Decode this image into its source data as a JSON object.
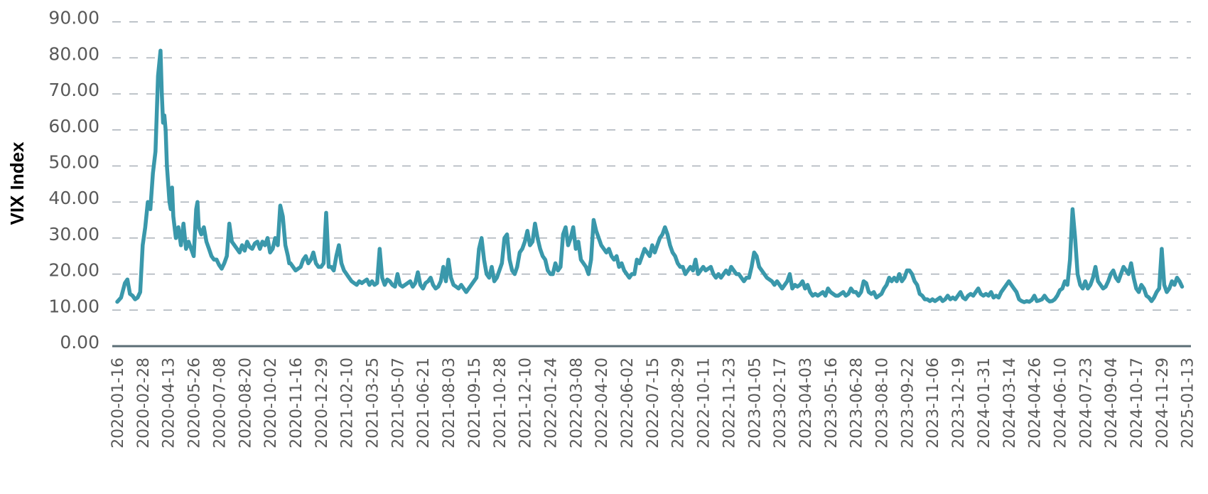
{
  "chart_data": {
    "type": "line",
    "title": "",
    "xlabel": "",
    "ylabel": "VIX Index",
    "ylim": [
      0,
      90
    ],
    "yticks": [
      "0.00",
      "10.00",
      "20.00",
      "30.00",
      "40.00",
      "50.00",
      "60.00",
      "70.00",
      "80.00",
      "90.00"
    ],
    "grid": true,
    "legend": "none",
    "line_color": "#3a98ab",
    "categories": [
      "2020-01-16",
      "2020-02-28",
      "2020-04-13",
      "2020-05-26",
      "2020-07-08",
      "2020-08-20",
      "2020-10-02",
      "2020-11-16",
      "2020-12-29",
      "2021-02-10",
      "2021-03-25",
      "2021-05-07",
      "2021-06-21",
      "2021-08-03",
      "2021-09-15",
      "2021-10-28",
      "2021-12-10",
      "2022-01-24",
      "2022-03-08",
      "2022-04-20",
      "2022-06-02",
      "2022-07-15",
      "2022-08-29",
      "2022-10-11",
      "2022-11-23",
      "2023-01-05",
      "2023-02-17",
      "2023-04-03",
      "2023-05-16",
      "2023-06-28",
      "2023-08-10",
      "2023-09-22",
      "2023-11-06",
      "2023-12-19",
      "2024-01-31",
      "2024-03-14",
      "2024-04-26",
      "2024-06-10",
      "2024-07-23",
      "2024-09-04",
      "2024-10-17",
      "2024-11-29",
      "2025-01-13"
    ],
    "series": [
      {
        "name": "VIX Index",
        "x_index": [
          0,
          0.15,
          0.3,
          0.4,
          0.5,
          0.6,
          0.7,
          0.8,
          0.9,
          1.0,
          1.1,
          1.2,
          1.3,
          1.4,
          1.5,
          1.6,
          1.7,
          1.75,
          1.8,
          1.85,
          1.9,
          1.95,
          2.0,
          2.05,
          2.1,
          2.15,
          2.2,
          2.3,
          2.4,
          2.5,
          2.6,
          2.7,
          2.8,
          2.9,
          3.0,
          3.1,
          3.15,
          3.2,
          3.3,
          3.4,
          3.5,
          3.6,
          3.7,
          3.8,
          3.9,
          4.0,
          4.1,
          4.2,
          4.3,
          4.4,
          4.5,
          4.6,
          4.7,
          4.8,
          4.9,
          5.0,
          5.1,
          5.2,
          5.3,
          5.4,
          5.5,
          5.6,
          5.7,
          5.8,
          5.9,
          6.0,
          6.1,
          6.2,
          6.3,
          6.4,
          6.5,
          6.6,
          6.7,
          6.75,
          6.8,
          6.9,
          7.0,
          7.1,
          7.2,
          7.3,
          7.4,
          7.5,
          7.6,
          7.7,
          7.8,
          7.9,
          8.0,
          8.1,
          8.2,
          8.3,
          8.4,
          8.5,
          8.6,
          8.7,
          8.8,
          8.9,
          9.0,
          9.1,
          9.2,
          9.3,
          9.4,
          9.5,
          9.6,
          9.7,
          9.8,
          9.9,
          10.0,
          10.1,
          10.2,
          10.3,
          10.4,
          10.5,
          10.6,
          10.7,
          10.8,
          10.9,
          11.0,
          11.1,
          11.2,
          11.3,
          11.4,
          11.5,
          11.6,
          11.7,
          11.8,
          11.9,
          12.0,
          12.1,
          12.2,
          12.3,
          12.4,
          12.5,
          12.6,
          12.7,
          12.8,
          12.9,
          13.0,
          13.1,
          13.2,
          13.3,
          13.4,
          13.5,
          13.6,
          13.7,
          13.8,
          13.9,
          14.0,
          14.1,
          14.2,
          14.3,
          14.4,
          14.5,
          14.6,
          14.7,
          14.8,
          14.9,
          15.0,
          15.1,
          15.2,
          15.3,
          15.4,
          15.5,
          15.6,
          15.7,
          15.8,
          15.9,
          16.0,
          16.1,
          16.2,
          16.3,
          16.4,
          16.5,
          16.6,
          16.7,
          16.8,
          16.9,
          17.0,
          17.1,
          17.2,
          17.3,
          17.4,
          17.5,
          17.6,
          17.7,
          17.8,
          17.9,
          18.0,
          18.1,
          18.2,
          18.3,
          18.4,
          18.5,
          18.6,
          18.7,
          18.8,
          18.9,
          19.0,
          19.1,
          19.2,
          19.3,
          19.4,
          19.5,
          19.6,
          19.7,
          19.8,
          19.9,
          20.0,
          20.1,
          20.2,
          20.3,
          20.4,
          20.5,
          20.6,
          20.7,
          20.8,
          20.9,
          21.0,
          21.1,
          21.2,
          21.3,
          21.4,
          21.5,
          21.6,
          21.7,
          21.8,
          21.9,
          22.0,
          22.1,
          22.2,
          22.3,
          22.4,
          22.5,
          22.6,
          22.7,
          22.8,
          22.9,
          23.0,
          23.1,
          23.2,
          23.3,
          23.4,
          23.5,
          23.6,
          23.7,
          23.8,
          23.9,
          24.0,
          24.1,
          24.2,
          24.3,
          24.4,
          24.5,
          24.6,
          24.7,
          24.8,
          24.9,
          25.0,
          25.1,
          25.2,
          25.3,
          25.4,
          25.5,
          25.6,
          25.7,
          25.8,
          25.9,
          26.0,
          26.1,
          26.2,
          26.3,
          26.4,
          26.5,
          26.6,
          26.7,
          26.8,
          26.9,
          27.0,
          27.1,
          27.2,
          27.3,
          27.4,
          27.5,
          27.6,
          27.7,
          27.8,
          27.9,
          28.0,
          28.1,
          28.2,
          28.3,
          28.4,
          28.5,
          28.6,
          28.7,
          28.8,
          28.9,
          29.0,
          29.1,
          29.2,
          29.3,
          29.4,
          29.5,
          29.6,
          29.7,
          29.8,
          29.9,
          30.0,
          30.1,
          30.2,
          30.3,
          30.4,
          30.5,
          30.6,
          30.7,
          30.8,
          30.9,
          31.0,
          31.1,
          31.2,
          31.3,
          31.4,
          31.5,
          31.6,
          31.7,
          31.8,
          31.9,
          32.0,
          32.1,
          32.2,
          32.3,
          32.4,
          32.5,
          32.6,
          32.7,
          32.8,
          32.9,
          33.0,
          33.1,
          33.2,
          33.3,
          33.4,
          33.5,
          33.6,
          33.7,
          33.8,
          33.9,
          34.0,
          34.1,
          34.2,
          34.3,
          34.4,
          34.5,
          34.6,
          34.7,
          34.8,
          34.9,
          35.0,
          35.1,
          35.2,
          35.3,
          35.4,
          35.5,
          35.6,
          35.7,
          35.8,
          35.9,
          36.0,
          36.1,
          36.2,
          36.3,
          36.4,
          36.5,
          36.6,
          36.7,
          36.8,
          36.9,
          37.0,
          37.1,
          37.2,
          37.3,
          37.4,
          37.5,
          37.6,
          37.7,
          37.8,
          37.9,
          38.0,
          38.1,
          38.2,
          38.3,
          38.4,
          38.5,
          38.6,
          38.7,
          38.8,
          38.9,
          39.0,
          39.1,
          39.2,
          39.3,
          39.4,
          39.5,
          39.6,
          39.7,
          39.8,
          39.9,
          40.0,
          40.1,
          40.2,
          40.3,
          40.4,
          40.5,
          40.6,
          40.7,
          40.8,
          40.9,
          41.0,
          41.1,
          41.2,
          41.3,
          41.4,
          41.5,
          41.6,
          41.7,
          41.8,
          41.9,
          42.0,
          42.1,
          42.2,
          42.3
        ],
        "values": [
          12.3,
          13.5,
          17.5,
          18.5,
          14.5,
          14,
          13,
          13.5,
          15,
          28,
          33,
          40,
          38,
          48,
          54,
          75,
          82,
          70,
          62,
          64,
          60,
          50,
          45,
          40,
          38,
          44,
          36,
          30,
          33,
          28,
          34,
          27,
          29,
          27,
          25,
          38,
          40,
          33,
          31,
          33,
          29,
          27,
          25,
          24,
          24,
          22.5,
          21.5,
          23,
          25,
          34,
          29,
          28,
          27,
          26,
          28,
          26.5,
          29,
          27.5,
          27,
          28.5,
          29,
          27,
          29,
          28,
          30,
          26,
          27,
          30,
          28,
          39,
          36,
          28,
          25,
          23,
          23,
          22,
          21,
          21.5,
          22,
          24,
          25,
          23,
          24,
          26,
          23,
          22,
          22,
          23,
          37,
          22,
          22,
          21,
          25,
          28,
          23,
          21,
          20,
          19,
          18,
          17.5,
          17,
          18,
          17.5,
          18,
          18.5,
          17,
          18,
          17,
          17.5,
          27,
          19,
          17,
          18.5,
          18,
          17,
          16.5,
          20,
          17,
          16.5,
          17,
          17.5,
          18,
          16.5,
          17.5,
          20.5,
          17,
          16,
          17.5,
          18,
          19,
          17,
          16,
          16.5,
          18,
          22,
          18,
          24,
          19,
          17,
          16.5,
          16,
          17,
          16,
          15,
          16,
          17,
          18,
          19,
          27,
          30,
          24,
          20,
          19,
          22,
          18,
          19,
          21,
          23,
          30,
          31,
          24,
          21,
          20,
          22,
          26,
          27,
          29,
          32,
          28,
          29,
          34,
          30,
          27,
          25,
          24,
          21,
          20,
          20,
          23,
          21,
          22,
          31,
          33,
          28,
          30,
          33,
          27,
          29,
          24,
          23,
          22,
          20,
          24,
          35,
          32,
          30,
          28,
          27,
          26,
          27,
          25,
          24,
          25,
          22,
          23,
          21,
          20,
          19,
          20,
          20,
          24,
          23,
          25,
          27,
          26,
          25,
          28,
          26,
          28,
          30,
          31,
          33,
          31,
          28,
          26,
          25,
          23,
          22,
          22,
          20,
          21,
          22,
          21,
          24,
          20,
          21,
          22,
          21,
          21.5,
          22,
          20,
          19,
          20,
          19,
          20,
          21,
          20,
          22,
          21,
          20,
          20,
          19,
          18,
          19,
          19,
          22,
          26,
          25,
          22,
          21,
          20,
          19,
          18.5,
          18,
          17,
          18,
          17,
          16,
          17,
          18,
          20,
          16,
          17,
          16.5,
          17,
          18,
          16,
          17,
          15,
          14,
          14.5,
          14,
          14.5,
          15,
          14,
          16,
          15,
          14.5,
          14,
          14,
          14.5,
          15,
          14,
          14.5,
          16,
          15,
          15,
          14,
          15,
          18,
          17.5,
          15,
          14.5,
          15,
          13.5,
          14,
          14.5,
          16,
          17,
          19,
          18,
          19,
          18,
          20,
          18,
          19,
          21,
          21,
          20,
          18,
          17,
          14.5,
          14,
          13,
          13,
          12.5,
          13,
          12.5,
          13,
          13.5,
          12.5,
          13,
          14,
          13,
          13.5,
          13,
          14,
          15,
          13.5,
          13,
          14,
          14.5,
          14,
          15,
          16,
          14.5,
          14,
          14.5,
          14,
          15,
          13.5,
          14,
          13.5,
          15,
          16,
          17,
          18,
          17,
          16,
          15,
          13,
          12.5,
          12.2,
          12.5,
          12.3,
          12.8,
          14,
          12.5,
          12.7,
          13,
          14,
          13,
          12.4,
          12.5,
          13,
          14,
          15.5,
          16,
          18,
          17,
          24,
          38,
          30,
          20,
          17,
          16,
          18,
          16,
          17,
          19,
          22,
          18,
          17,
          16,
          16.5,
          18,
          20,
          21,
          19,
          18,
          20,
          22,
          21,
          20,
          23,
          19,
          16,
          15,
          17,
          16,
          14,
          13.5,
          12.5,
          13.5,
          15,
          16,
          27,
          17,
          15,
          16,
          18,
          17,
          19,
          18,
          16.5
        ]
      }
    ]
  },
  "axis": {
    "y_title": "VIX Index"
  }
}
